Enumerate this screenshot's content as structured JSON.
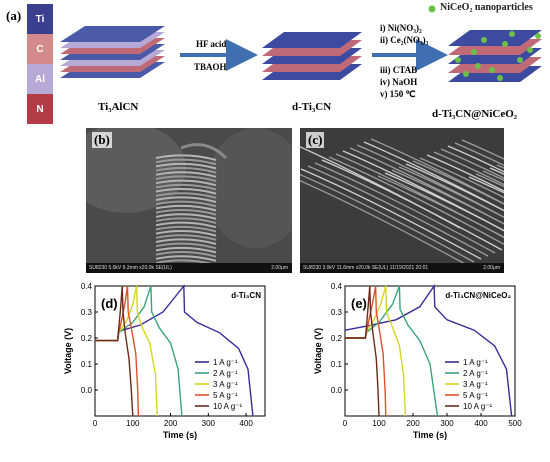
{
  "panel_labels": {
    "a": "(a)",
    "b": "(b)",
    "c": "(c)",
    "d": "(d)",
    "e": "(e)"
  },
  "legend_np": "NiCeO₂ nanoparticles",
  "elements": [
    "Ti",
    "C",
    "Al",
    "N"
  ],
  "element_colors": [
    "#3a3f8f",
    "#d48a8a",
    "#b7a9d6",
    "#b23b45"
  ],
  "labels": {
    "ti3alcn": "Ti₃AlCN",
    "dti3cn": "d-Ti₃CN",
    "composite": "d-Ti₃CN@NiCeO₂"
  },
  "arrow1": {
    "top": "HF acid",
    "bottom": "TBAOH"
  },
  "reagents": [
    "i) Ni(NO₃)₂",
    "ii) Ce₂(NO₃)₃",
    "iii) CTAB",
    "iv) NaOH",
    "v) 150 ℃"
  ],
  "sem_b": {
    "caption": "SU8230 5.0kV 9.3mm x20.0k SE(UL)",
    "scale": "2.00μm"
  },
  "sem_c": {
    "caption": "SU8230 3.0kV 11.6mm x20.0k SE(UL) 11/19/2021 20:01",
    "scale": "2.00μm"
  },
  "chart_data": [
    {
      "type": "line",
      "title": "d-Ti₃CN",
      "xlabel": "Time (s)",
      "ylabel": "Voltage (V)",
      "xlim": [
        0,
        450
      ],
      "ylim": [
        -0.1,
        0.4
      ],
      "xticks": [
        0,
        100,
        200,
        300,
        400
      ],
      "yticks": [
        0.0,
        0.1,
        0.2,
        0.3,
        0.4
      ],
      "series": [
        {
          "name": "1 A g⁻¹",
          "color": "#3b2a9a",
          "points": [
            [
              0,
              0.19
            ],
            [
              60,
              0.19
            ],
            [
              62,
              0.225
            ],
            [
              120,
              0.25
            ],
            [
              180,
              0.3
            ],
            [
              235,
              0.4
            ],
            [
              237,
              0.3
            ],
            [
              270,
              0.26
            ],
            [
              330,
              0.22
            ],
            [
              380,
              0.16
            ],
            [
              405,
              0.08
            ],
            [
              418,
              -0.1
            ]
          ]
        },
        {
          "name": "2 A g⁻¹",
          "color": "#3aa37a",
          "points": [
            [
              0,
              0.19
            ],
            [
              60,
              0.19
            ],
            [
              62,
              0.22
            ],
            [
              100,
              0.26
            ],
            [
              130,
              0.32
            ],
            [
              148,
              0.4
            ],
            [
              150,
              0.3
            ],
            [
              170,
              0.24
            ],
            [
              200,
              0.18
            ],
            [
              220,
              0.08
            ],
            [
              230,
              -0.1
            ]
          ]
        },
        {
          "name": "3 A g⁻¹",
          "color": "#d6d620",
          "points": [
            [
              0,
              0.19
            ],
            [
              60,
              0.19
            ],
            [
              62,
              0.22
            ],
            [
              85,
              0.27
            ],
            [
              100,
              0.33
            ],
            [
              110,
              0.4
            ],
            [
              112,
              0.3
            ],
            [
              125,
              0.24
            ],
            [
              145,
              0.18
            ],
            [
              160,
              0.06
            ],
            [
              165,
              -0.1
            ]
          ]
        },
        {
          "name": "5 A g⁻¹",
          "color": "#e05028",
          "points": [
            [
              0,
              0.19
            ],
            [
              60,
              0.19
            ],
            [
              63,
              0.22
            ],
            [
              72,
              0.28
            ],
            [
              80,
              0.34
            ],
            [
              86,
              0.4
            ],
            [
              88,
              0.3
            ],
            [
              96,
              0.24
            ],
            [
              108,
              0.14
            ],
            [
              113,
              0.0
            ],
            [
              115,
              -0.1
            ]
          ]
        },
        {
          "name": "10 A g⁻¹",
          "color": "#6b2a1a",
          "points": [
            [
              0,
              0.19
            ],
            [
              60,
              0.19
            ],
            [
              63,
              0.24
            ],
            [
              68,
              0.32
            ],
            [
              72,
              0.4
            ],
            [
              74,
              0.3
            ],
            [
              80,
              0.22
            ],
            [
              90,
              0.12
            ],
            [
              96,
              0.0
            ],
            [
              100,
              -0.1
            ]
          ]
        }
      ]
    },
    {
      "type": "line",
      "title": "d-Ti₃CN@NiCeO₂",
      "xlabel": "Time (s)",
      "ylabel": "Voltage (V)",
      "xlim": [
        0,
        500
      ],
      "ylim": [
        -0.1,
        0.4
      ],
      "xticks": [
        0,
        100,
        200,
        300,
        400,
        500
      ],
      "yticks": [
        0.0,
        0.1,
        0.2,
        0.3,
        0.4
      ],
      "series": [
        {
          "name": "1 A g⁻¹",
          "color": "#3b2a9a",
          "points": [
            [
              0,
              0.23
            ],
            [
              60,
              0.245
            ],
            [
              150,
              0.27
            ],
            [
              220,
              0.32
            ],
            [
              262,
              0.4
            ],
            [
              264,
              0.32
            ],
            [
              300,
              0.27
            ],
            [
              380,
              0.23
            ],
            [
              440,
              0.17
            ],
            [
              475,
              0.08
            ],
            [
              490,
              -0.1
            ]
          ]
        },
        {
          "name": "2 A g⁻¹",
          "color": "#3aa37a",
          "points": [
            [
              0,
              0.2
            ],
            [
              60,
              0.2
            ],
            [
              62,
              0.22
            ],
            [
              100,
              0.26
            ],
            [
              140,
              0.33
            ],
            [
              160,
              0.4
            ],
            [
              162,
              0.31
            ],
            [
              185,
              0.25
            ],
            [
              220,
              0.19
            ],
            [
              250,
              0.1
            ],
            [
              272,
              -0.1
            ]
          ]
        },
        {
          "name": "3 A g⁻¹",
          "color": "#d6d620",
          "points": [
            [
              0,
              0.2
            ],
            [
              60,
              0.2
            ],
            [
              62,
              0.22
            ],
            [
              85,
              0.27
            ],
            [
              105,
              0.33
            ],
            [
              120,
              0.4
            ],
            [
              122,
              0.3
            ],
            [
              140,
              0.24
            ],
            [
              160,
              0.17
            ],
            [
              172,
              0.06
            ],
            [
              178,
              -0.1
            ]
          ]
        },
        {
          "name": "5 A g⁻¹",
          "color": "#e05028",
          "points": [
            [
              0,
              0.2
            ],
            [
              60,
              0.2
            ],
            [
              63,
              0.22
            ],
            [
              72,
              0.28
            ],
            [
              82,
              0.34
            ],
            [
              90,
              0.4
            ],
            [
              92,
              0.3
            ],
            [
              100,
              0.24
            ],
            [
              112,
              0.14
            ],
            [
              118,
              0.0
            ],
            [
              120,
              -0.1
            ]
          ]
        },
        {
          "name": "10 A g⁻¹",
          "color": "#6b2a1a",
          "points": [
            [
              0,
              0.2
            ],
            [
              60,
              0.2
            ],
            [
              63,
              0.24
            ],
            [
              68,
              0.32
            ],
            [
              73,
              0.4
            ],
            [
              75,
              0.3
            ],
            [
              82,
              0.22
            ],
            [
              92,
              0.12
            ],
            [
              97,
              0.0
            ],
            [
              100,
              -0.1
            ]
          ]
        }
      ]
    }
  ]
}
